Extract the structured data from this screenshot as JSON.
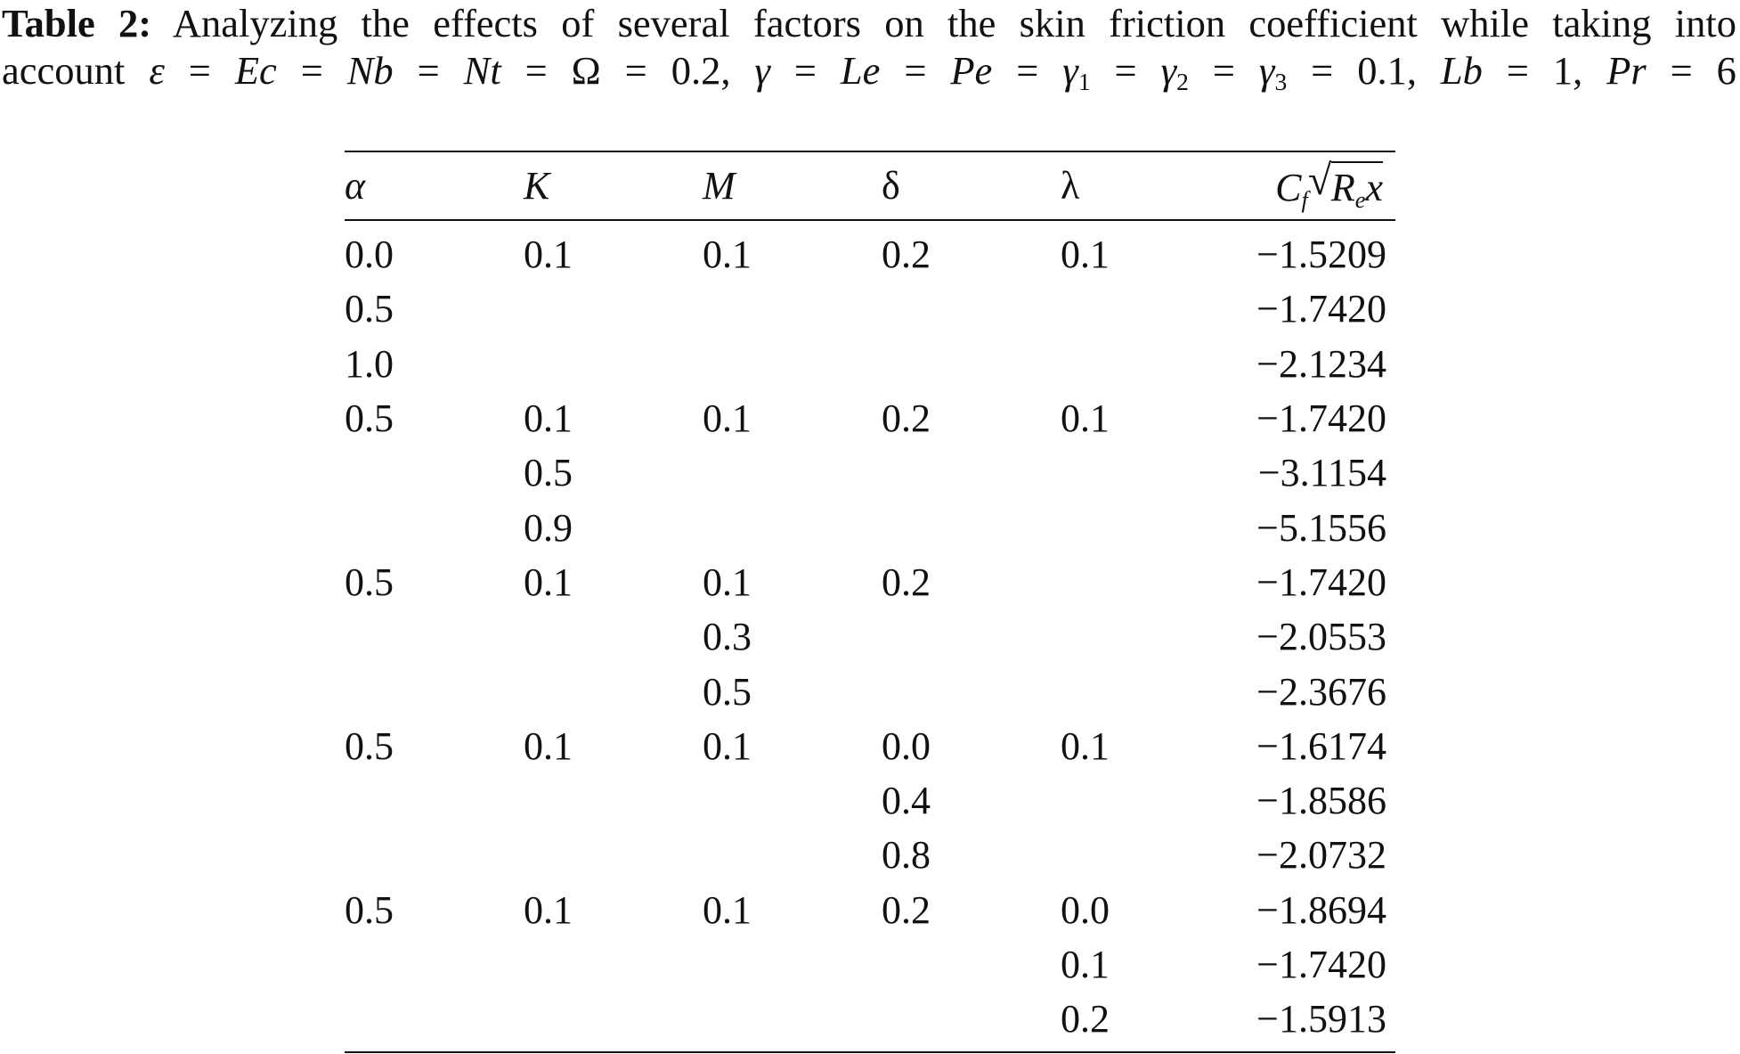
{
  "caption": {
    "label": "Table 2:",
    "line1_text": "Analyzing the effects of several factors on the skin friction coefficient while taking into",
    "line2_prefix": "account",
    "params": "ε = Ec = Nb = Nt = Ω = 0.2, γ = Le = Pe = γ1 = γ2 = γ3 = 0.1, Lb = 1, Pr = 6"
  },
  "table": {
    "headers": [
      "α",
      "K",
      "M",
      "δ",
      "λ",
      "Cf√(Rex)"
    ],
    "rows": [
      [
        "0.0",
        "0.1",
        "0.1",
        "0.2",
        "0.1",
        "−1.5209"
      ],
      [
        "0.5",
        "",
        "",
        "",
        "",
        "−1.7420"
      ],
      [
        "1.0",
        "",
        "",
        "",
        "",
        "−2.1234"
      ],
      [
        "0.5",
        "0.1",
        "0.1",
        "0.2",
        "0.1",
        "−1.7420"
      ],
      [
        "",
        "0.5",
        "",
        "",
        "",
        "−3.1154"
      ],
      [
        "",
        "0.9",
        "",
        "",
        "",
        "−5.1556"
      ],
      [
        "0.5",
        "0.1",
        "0.1",
        "0.2",
        "",
        "−1.7420"
      ],
      [
        "",
        "",
        "0.3",
        "",
        "",
        "−2.0553"
      ],
      [
        "",
        "",
        "0.5",
        "",
        "",
        "−2.3676"
      ],
      [
        "0.5",
        "0.1",
        "0.1",
        "0.0",
        "0.1",
        "−1.6174"
      ],
      [
        "",
        "",
        "",
        "0.4",
        "",
        "−1.8586"
      ],
      [
        "",
        "",
        "",
        "0.8",
        "",
        "−2.0732"
      ],
      [
        "0.5",
        "0.1",
        "0.1",
        "0.2",
        "0.0",
        "−1.8694"
      ],
      [
        "",
        "",
        "",
        "",
        "0.1",
        "−1.7420"
      ],
      [
        "",
        "",
        "",
        "",
        "0.2",
        "−1.5913"
      ]
    ]
  }
}
